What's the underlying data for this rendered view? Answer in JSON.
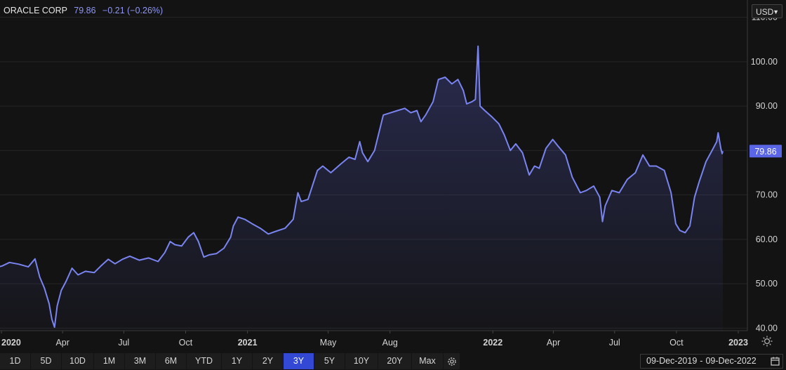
{
  "header": {
    "name": "ORACLE CORP",
    "price": "79.86",
    "change": "−0.21 (−0.26%)"
  },
  "currency": {
    "label": "USD"
  },
  "last_label": "79.86",
  "colors": {
    "line": "#7a84f0",
    "accent": "#3448d6",
    "label_bg": "#5b66e6"
  },
  "range_buttons": [
    {
      "label": "1D"
    },
    {
      "label": "5D"
    },
    {
      "label": "10D"
    },
    {
      "label": "1M"
    },
    {
      "label": "3M"
    },
    {
      "label": "6M"
    },
    {
      "label": "YTD"
    },
    {
      "label": "1Y"
    },
    {
      "label": "2Y"
    },
    {
      "label": "3Y",
      "active": true
    },
    {
      "label": "5Y"
    },
    {
      "label": "10Y"
    },
    {
      "label": "20Y"
    },
    {
      "label": "Max"
    }
  ],
  "date_range": {
    "from": "09-Dec-2019",
    "sep": "-",
    "to": "09-Dec-2022"
  },
  "icons": {
    "settings": "gear-icon",
    "calendar": "calendar-icon",
    "theme": "sun-icon",
    "currency_dropdown": "chevron-down-icon"
  },
  "chart_data": {
    "type": "area",
    "title": "",
    "x_start": "2019-12-09",
    "x_end": "2022-12-09",
    "ylim": [
      36.5,
      113.5
    ],
    "yticks": [
      {
        "v": 40,
        "label": "40.00"
      },
      {
        "v": 50,
        "label": "50.00"
      },
      {
        "v": 60,
        "label": "60.00"
      },
      {
        "v": 70,
        "label": "70.00"
      },
      {
        "v": 80,
        "label": "80.00"
      },
      {
        "v": 90,
        "label": "90.00"
      },
      {
        "v": 100,
        "label": "100.00"
      },
      {
        "v": 110,
        "label": "110.00"
      }
    ],
    "xticks": [
      {
        "d": "2020-01-01",
        "label": "2020",
        "bold": true
      },
      {
        "d": "2020-04-01",
        "label": "Apr"
      },
      {
        "d": "2020-07-01",
        "label": "Jul"
      },
      {
        "d": "2020-10-01",
        "label": "Oct"
      },
      {
        "d": "2021-01-01",
        "label": "2021",
        "bold": true
      },
      {
        "d": "2021-05-01",
        "label": "May"
      },
      {
        "d": "2021-08-01",
        "label": "Aug"
      },
      {
        "d": "2022-01-01",
        "label": "2022",
        "bold": true
      },
      {
        "d": "2022-04-01",
        "label": "Apr"
      },
      {
        "d": "2022-07-01",
        "label": "Jul"
      },
      {
        "d": "2022-10-01",
        "label": "Oct"
      },
      {
        "d": "2023-01-01",
        "label": "2023",
        "bold": true
      }
    ],
    "grid": true,
    "series": [
      {
        "points": [
          [
            "2019-12-09",
            54.2
          ],
          [
            "2019-12-20",
            53.5
          ],
          [
            "2020-01-02",
            54.0
          ],
          [
            "2020-01-13",
            54.8
          ],
          [
            "2020-01-27",
            54.4
          ],
          [
            "2020-02-10",
            53.8
          ],
          [
            "2020-02-20",
            55.6
          ],
          [
            "2020-02-27",
            51.5
          ],
          [
            "2020-03-05",
            49.0
          ],
          [
            "2020-03-12",
            45.5
          ],
          [
            "2020-03-16",
            42.0
          ],
          [
            "2020-03-20",
            40.2
          ],
          [
            "2020-03-24",
            45.0
          ],
          [
            "2020-03-30",
            48.5
          ],
          [
            "2020-04-06",
            50.5
          ],
          [
            "2020-04-15",
            53.5
          ],
          [
            "2020-04-24",
            52.0
          ],
          [
            "2020-05-05",
            52.8
          ],
          [
            "2020-05-18",
            52.5
          ],
          [
            "2020-05-28",
            54.0
          ],
          [
            "2020-06-08",
            55.5
          ],
          [
            "2020-06-18",
            54.5
          ],
          [
            "2020-06-29",
            55.5
          ],
          [
            "2020-07-10",
            56.2
          ],
          [
            "2020-07-24",
            55.3
          ],
          [
            "2020-08-07",
            55.8
          ],
          [
            "2020-08-21",
            55.0
          ],
          [
            "2020-08-31",
            57.0
          ],
          [
            "2020-09-08",
            59.5
          ],
          [
            "2020-09-15",
            58.8
          ],
          [
            "2020-09-25",
            58.5
          ],
          [
            "2020-10-05",
            60.5
          ],
          [
            "2020-10-13",
            61.5
          ],
          [
            "2020-10-20",
            59.5
          ],
          [
            "2020-10-28",
            56.0
          ],
          [
            "2020-11-05",
            56.5
          ],
          [
            "2020-11-16",
            56.8
          ],
          [
            "2020-11-27",
            58.0
          ],
          [
            "2020-12-07",
            60.5
          ],
          [
            "2020-12-11",
            63.0
          ],
          [
            "2020-12-18",
            65.0
          ],
          [
            "2020-12-28",
            64.5
          ],
          [
            "2021-01-08",
            63.5
          ],
          [
            "2021-01-20",
            62.5
          ],
          [
            "2021-02-01",
            61.2
          ],
          [
            "2021-02-12",
            61.8
          ],
          [
            "2021-02-26",
            62.5
          ],
          [
            "2021-03-10",
            64.5
          ],
          [
            "2021-03-17",
            70.5
          ],
          [
            "2021-03-22",
            68.5
          ],
          [
            "2021-04-01",
            69.0
          ],
          [
            "2021-04-15",
            75.5
          ],
          [
            "2021-04-23",
            76.5
          ],
          [
            "2021-05-05",
            75.0
          ],
          [
            "2021-05-20",
            77.0
          ],
          [
            "2021-06-01",
            78.5
          ],
          [
            "2021-06-10",
            78.0
          ],
          [
            "2021-06-17",
            82.0
          ],
          [
            "2021-06-21",
            79.5
          ],
          [
            "2021-06-29",
            77.5
          ],
          [
            "2021-07-09",
            80.0
          ],
          [
            "2021-07-22",
            88.0
          ],
          [
            "2021-08-02",
            88.5
          ],
          [
            "2021-08-12",
            89.0
          ],
          [
            "2021-08-23",
            89.5
          ],
          [
            "2021-09-01",
            88.5
          ],
          [
            "2021-09-10",
            89.0
          ],
          [
            "2021-09-16",
            86.5
          ],
          [
            "2021-09-23",
            88.0
          ],
          [
            "2021-10-04",
            91.0
          ],
          [
            "2021-10-12",
            96.0
          ],
          [
            "2021-10-22",
            96.5
          ],
          [
            "2021-11-01",
            95.0
          ],
          [
            "2021-11-10",
            96.0
          ],
          [
            "2021-11-18",
            93.5
          ],
          [
            "2021-11-23",
            90.5
          ],
          [
            "2021-12-01",
            91.0
          ],
          [
            "2021-12-06",
            91.5
          ],
          [
            "2021-12-10",
            103.5
          ],
          [
            "2021-12-13",
            90.0
          ],
          [
            "2021-12-20",
            89.0
          ],
          [
            "2021-12-31",
            87.5
          ],
          [
            "2022-01-10",
            86.0
          ],
          [
            "2022-01-18",
            83.5
          ],
          [
            "2022-01-27",
            80.0
          ],
          [
            "2022-02-04",
            81.5
          ],
          [
            "2022-02-14",
            79.5
          ],
          [
            "2022-02-24",
            74.5
          ],
          [
            "2022-03-04",
            76.5
          ],
          [
            "2022-03-11",
            76.0
          ],
          [
            "2022-03-21",
            80.5
          ],
          [
            "2022-03-31",
            82.5
          ],
          [
            "2022-04-08",
            81.0
          ],
          [
            "2022-04-19",
            79.0
          ],
          [
            "2022-04-29",
            74.0
          ],
          [
            "2022-05-11",
            70.5
          ],
          [
            "2022-05-20",
            71.0
          ],
          [
            "2022-05-31",
            72.0
          ],
          [
            "2022-06-09",
            69.5
          ],
          [
            "2022-06-13",
            64.0
          ],
          [
            "2022-06-17",
            67.5
          ],
          [
            "2022-06-27",
            71.0
          ],
          [
            "2022-07-08",
            70.5
          ],
          [
            "2022-07-20",
            73.5
          ],
          [
            "2022-08-01",
            75.0
          ],
          [
            "2022-08-12",
            79.0
          ],
          [
            "2022-08-22",
            76.5
          ],
          [
            "2022-09-01",
            76.5
          ],
          [
            "2022-09-13",
            75.5
          ],
          [
            "2022-09-23",
            70.5
          ],
          [
            "2022-09-30",
            63.5
          ],
          [
            "2022-10-06",
            62.0
          ],
          [
            "2022-10-14",
            61.5
          ],
          [
            "2022-10-21",
            63.0
          ],
          [
            "2022-10-28",
            69.5
          ],
          [
            "2022-11-04",
            73.0
          ],
          [
            "2022-11-14",
            77.5
          ],
          [
            "2022-11-23",
            80.0
          ],
          [
            "2022-11-30",
            82.0
          ],
          [
            "2022-12-02",
            84.0
          ],
          [
            "2022-12-06",
            80.5
          ],
          [
            "2022-12-08",
            79.3
          ],
          [
            "2022-12-09",
            79.86
          ]
        ]
      }
    ]
  }
}
